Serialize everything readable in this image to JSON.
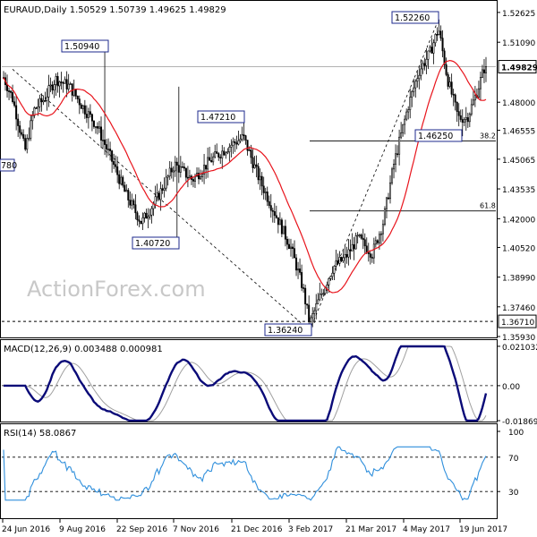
{
  "chart_data": {
    "type": "candlestick",
    "main": {
      "header": "EURAUD,Daily  1.50529 1.50739 1.49625 1.49829",
      "watermark": "ActionForex.com",
      "price_labels": [
        "1.52625",
        "1.51090",
        "1.49829",
        "1.48000",
        "1.46555",
        "1.45065",
        "1.43535",
        "1.42000",
        "1.40520",
        "1.38990",
        "1.37460",
        "1.36710",
        "1.35930"
      ],
      "current_price": 1.49829,
      "support_level": 1.3671,
      "callouts": [
        {
          "text": "1.50940",
          "value": 1.5094
        },
        {
          "text": "1.47210",
          "value": 1.4721
        },
        {
          "text": "1.40720",
          "value": 1.4072
        },
        {
          "text": "1.36240",
          "value": 1.3624
        },
        {
          "text": "1.52260",
          "value": 1.5226
        },
        {
          "text": "1.46250",
          "value": 1.4625
        }
      ],
      "left_edge_label": "780",
      "fib_levels": [
        {
          "label": "38.2",
          "value": 1.46
        },
        {
          "label": "61.8",
          "value": 1.424
        }
      ],
      "ylim": [
        1.3593,
        1.5262
      ],
      "x_labels": [
        "24 Jun 2016",
        "9 Aug 2016",
        "22 Sep 2016",
        "7 Nov 2016",
        "21 Dec 2016",
        "3 Feb 2017",
        "21 Mar 2017",
        "4 May 2017",
        "19 Jun 2017"
      ]
    },
    "macd": {
      "header": "MACD(12,26,9) 0.003488 0.000981",
      "scale_labels": [
        "0.021032",
        "0.00",
        "-0.018699"
      ],
      "ylim": [
        -0.0187,
        0.021
      ]
    },
    "rsi": {
      "header": "RSI(14) 58.0867",
      "scale_labels": [
        "100",
        "70",
        "30",
        "0"
      ],
      "levels": [
        70,
        30
      ],
      "ylim": [
        0,
        100
      ]
    },
    "colors": {
      "candle": "#000000",
      "ma": "#e8141c",
      "macd_line": "#0a0a78",
      "signal": "#a0a0a0",
      "rsi": "#2f8fdc",
      "callout_border": "#1e2a8c"
    }
  }
}
